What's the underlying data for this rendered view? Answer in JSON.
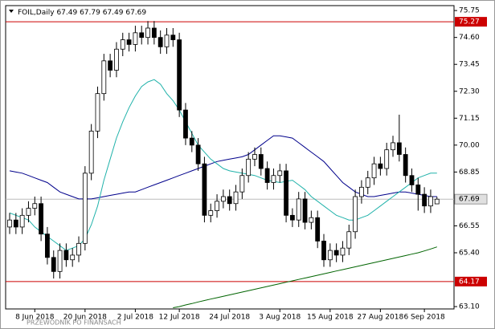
{
  "chart_data": {
    "type": "candlestick",
    "title": "FOIL,Daily",
    "categories": [
      null,
      null,
      null,
      null,
      "8 Jun 2018",
      null,
      null,
      null,
      null,
      null,
      null,
      null,
      "20 Jun 2018",
      null,
      null,
      null,
      null,
      null,
      null,
      null,
      "2 Jul 2018",
      null,
      null,
      null,
      null,
      null,
      null,
      "12 Jul 2018",
      null,
      null,
      null,
      null,
      null,
      null,
      null,
      "24 Jul 2018",
      null,
      null,
      null,
      null,
      null,
      null,
      null,
      "3 Aug 2018",
      null,
      null,
      null,
      null,
      null,
      null,
      null,
      "15 Aug 2018",
      null,
      null,
      null,
      null,
      null,
      null,
      null,
      "27 Aug 2018",
      null,
      null,
      null,
      null,
      null,
      null,
      "6 Sep 2018",
      null,
      null
    ],
    "open": [
      66.5,
      66.8,
      66.5,
      67.0,
      67.3,
      67.5,
      66.2,
      65.2,
      64.6,
      65.5,
      65.1,
      65.3,
      65.8,
      68.8,
      70.6,
      72.2,
      73.6,
      73.2,
      74.1,
      74.5,
      74.3,
      74.8,
      74.6,
      75.0,
      74.6,
      74.2,
      74.7,
      74.5,
      71.5,
      70.3,
      70.0,
      69.2,
      67.0,
      67.2,
      67.6,
      67.8,
      67.5,
      68.0,
      68.7,
      69.4,
      69.6,
      69.0,
      68.4,
      68.7,
      68.9,
      67.0,
      66.8,
      67.7,
      66.7,
      66.9,
      65.9,
      65.1,
      65.5,
      65.3,
      65.6,
      66.3,
      67.8,
      68.2,
      68.6,
      69.2,
      69.0,
      69.8,
      70.1,
      69.6,
      68.7,
      68.3,
      67.9,
      67.4,
      67.49
    ],
    "high": [
      67.1,
      67.1,
      67.3,
      67.6,
      67.8,
      67.8,
      66.5,
      65.5,
      65.8,
      65.8,
      65.6,
      66.1,
      69.1,
      70.9,
      72.5,
      73.9,
      73.9,
      74.4,
      74.8,
      74.8,
      75.1,
      75.1,
      75.3,
      75.3,
      74.9,
      75.0,
      75.0,
      74.8,
      71.8,
      70.6,
      70.3,
      69.5,
      67.5,
      67.9,
      68.1,
      68.1,
      68.3,
      69.0,
      69.7,
      69.9,
      69.9,
      69.3,
      69.0,
      69.2,
      69.2,
      67.3,
      68.0,
      68.0,
      67.2,
      67.2,
      66.2,
      65.8,
      65.8,
      65.9,
      66.6,
      68.1,
      68.5,
      68.9,
      69.5,
      69.5,
      70.1,
      70.4,
      71.3,
      69.9,
      69.0,
      68.6,
      68.2,
      68.1,
      67.79
    ],
    "low": [
      66.2,
      66.2,
      66.2,
      66.7,
      67.0,
      65.9,
      64.9,
      64.3,
      64.3,
      64.8,
      64.8,
      65.0,
      65.5,
      68.5,
      70.3,
      71.9,
      72.9,
      72.9,
      73.8,
      74.0,
      74.0,
      74.3,
      74.3,
      74.3,
      73.9,
      73.9,
      74.2,
      71.2,
      70.0,
      69.7,
      68.9,
      66.7,
      66.7,
      66.9,
      67.3,
      67.2,
      67.2,
      67.7,
      68.4,
      69.1,
      68.7,
      68.1,
      68.1,
      68.4,
      66.7,
      66.5,
      66.5,
      66.4,
      66.4,
      65.6,
      64.8,
      64.8,
      65.0,
      65.0,
      65.3,
      66.0,
      67.5,
      67.9,
      68.3,
      68.7,
      68.7,
      69.5,
      69.3,
      68.4,
      68.0,
      67.2,
      67.1,
      67.1,
      67.49
    ],
    "close": [
      66.8,
      66.5,
      67.0,
      67.3,
      67.5,
      66.2,
      65.2,
      64.6,
      65.5,
      65.1,
      65.3,
      65.8,
      68.8,
      70.6,
      72.2,
      73.6,
      73.2,
      74.1,
      74.5,
      74.3,
      74.8,
      74.6,
      75.0,
      74.6,
      74.2,
      74.7,
      74.5,
      71.5,
      70.3,
      70.0,
      69.2,
      67.0,
      67.2,
      67.6,
      67.8,
      67.5,
      68.0,
      68.7,
      69.4,
      69.6,
      69.0,
      68.4,
      68.7,
      68.9,
      67.0,
      66.8,
      67.7,
      66.7,
      66.9,
      65.9,
      65.1,
      65.5,
      65.3,
      65.6,
      66.3,
      67.8,
      68.2,
      68.6,
      69.2,
      69.0,
      69.8,
      70.1,
      69.6,
      68.7,
      68.3,
      67.9,
      67.4,
      67.8,
      67.69
    ],
    "overlays": [
      {
        "color": "#00008b",
        "values": [
          68.9,
          68.85,
          68.8,
          68.7,
          68.6,
          68.5,
          68.4,
          68.2,
          68.0,
          67.9,
          67.8,
          67.7,
          67.7,
          67.7,
          67.75,
          67.8,
          67.85,
          67.9,
          67.95,
          68.0,
          68.0,
          68.1,
          68.2,
          68.3,
          68.4,
          68.5,
          68.6,
          68.7,
          68.8,
          68.9,
          69.0,
          69.1,
          69.2,
          69.3,
          69.35,
          69.4,
          69.45,
          69.5,
          69.6,
          69.8,
          70.0,
          70.2,
          70.4,
          70.4,
          70.35,
          70.3,
          70.1,
          69.9,
          69.7,
          69.5,
          69.3,
          69.0,
          68.7,
          68.4,
          68.2,
          68.0,
          67.9,
          67.8,
          67.8,
          67.85,
          67.9,
          67.95,
          68.0,
          68.0,
          67.95,
          67.9,
          67.85,
          67.8,
          67.8
        ]
      },
      {
        "color": "#20b2aa",
        "values": [
          67.1,
          67.0,
          66.9,
          66.8,
          66.5,
          66.3,
          66.1,
          65.9,
          65.7,
          65.5,
          65.6,
          65.7,
          66.0,
          66.6,
          67.4,
          68.5,
          69.4,
          70.3,
          71.0,
          71.6,
          72.1,
          72.5,
          72.7,
          72.8,
          72.6,
          72.2,
          71.9,
          71.5,
          71.0,
          70.5,
          70.0,
          69.7,
          69.4,
          69.2,
          69.0,
          68.9,
          68.85,
          68.8,
          68.75,
          68.7,
          68.6,
          68.5,
          68.45,
          68.4,
          68.45,
          68.5,
          68.3,
          68.1,
          67.8,
          67.6,
          67.4,
          67.2,
          67.0,
          66.9,
          66.8,
          66.8,
          66.9,
          67.0,
          67.2,
          67.4,
          67.6,
          67.8,
          68.0,
          68.2,
          68.4,
          68.6,
          68.7,
          68.8,
          68.8
        ]
      },
      {
        "color": "#006400",
        "values": [
          null,
          null,
          null,
          null,
          null,
          null,
          null,
          null,
          null,
          null,
          null,
          null,
          null,
          null,
          null,
          null,
          null,
          null,
          null,
          null,
          null,
          null,
          null,
          null,
          null,
          null,
          63.05,
          63.1,
          63.17,
          63.23,
          63.3,
          63.36,
          63.42,
          63.48,
          63.54,
          63.6,
          63.66,
          63.72,
          63.78,
          63.84,
          63.9,
          63.96,
          64.02,
          64.08,
          64.14,
          64.2,
          64.26,
          64.32,
          64.38,
          64.44,
          64.5,
          64.56,
          64.62,
          64.68,
          64.74,
          64.8,
          64.86,
          64.92,
          64.98,
          65.04,
          65.1,
          65.16,
          65.22,
          65.28,
          65.34,
          65.4,
          65.48,
          65.56,
          65.65
        ]
      }
    ],
    "hlines": [
      {
        "value": 75.27,
        "color": "#cc0000"
      },
      {
        "value": 64.17,
        "color": "#cc0000"
      }
    ],
    "ylim": [
      63.0,
      75.96
    ],
    "yticks": [
      75.75,
      {
        "value": 74.6,
        "label": "74.60"
      },
      73.45,
      {
        "value": 72.3,
        "label": "72.30"
      },
      71.15,
      {
        "value": 70,
        "label": "70.00"
      },
      68.85,
      66.55,
      {
        "value": 65.4,
        "label": "65.40"
      },
      {
        "value": 63.1,
        "label": "63.10"
      }
    ],
    "watermark": "PRZEWODNIK PO FINANSACH"
  }
}
